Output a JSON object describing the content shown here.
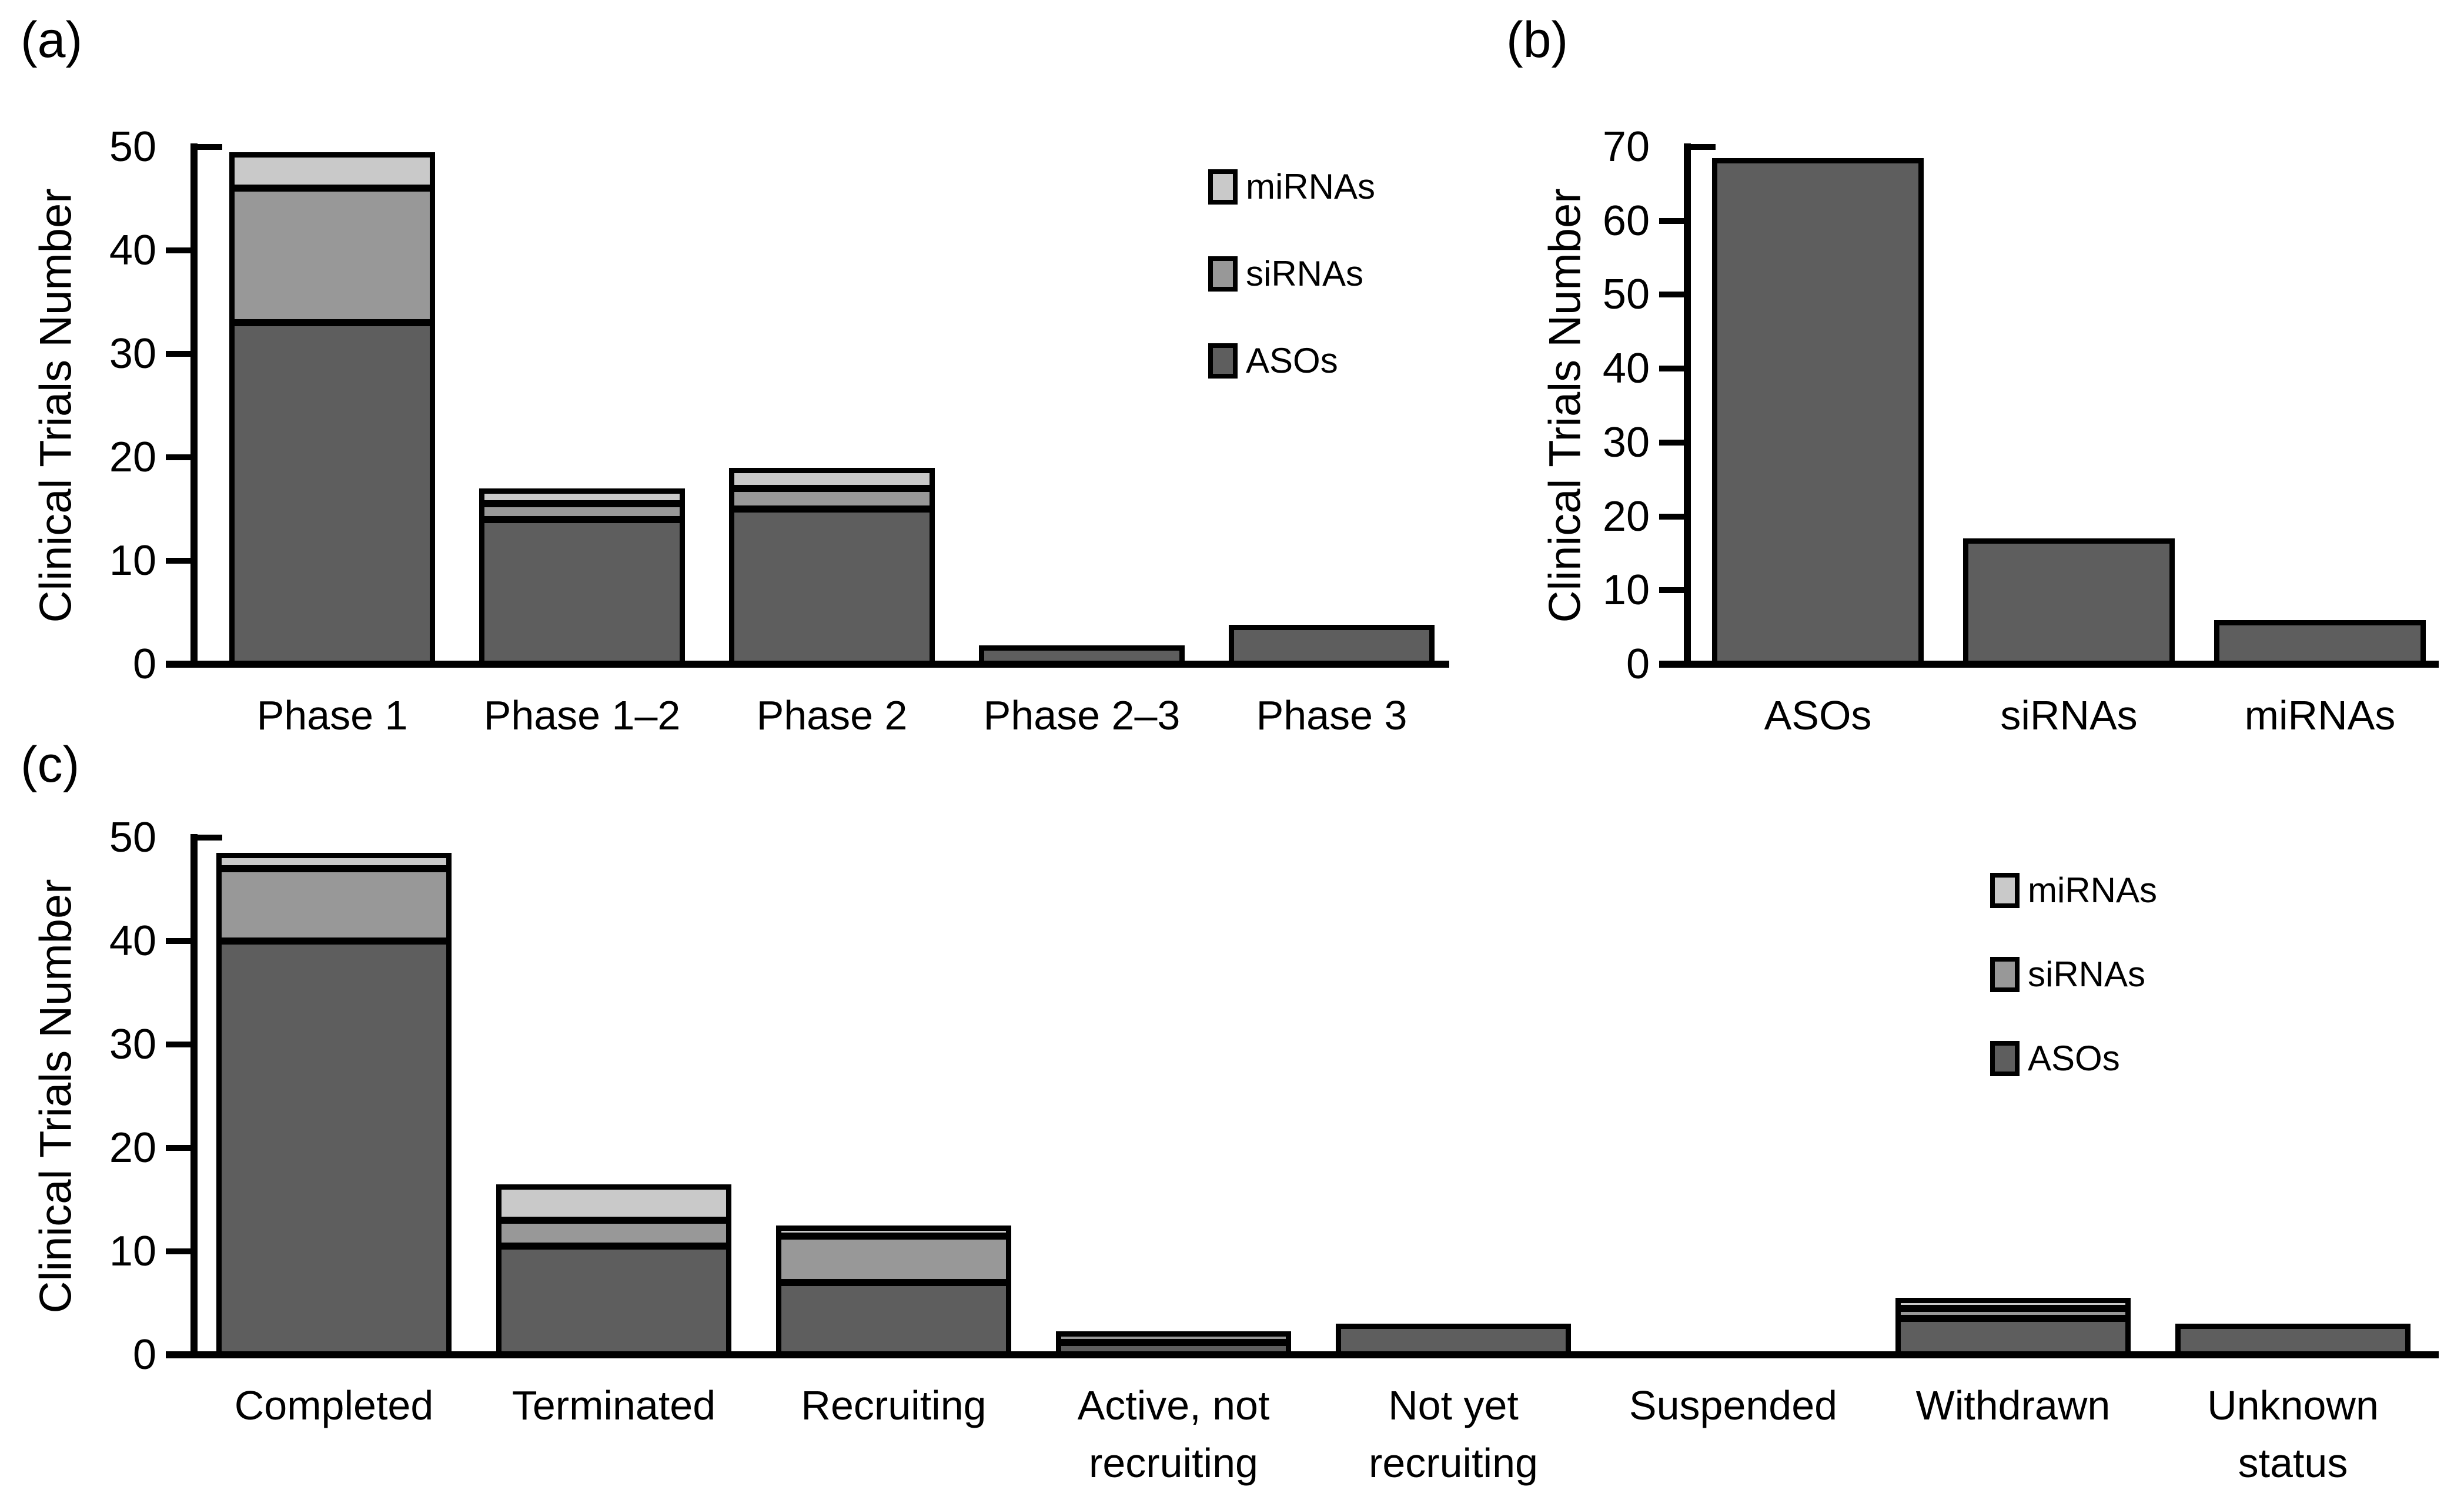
{
  "figure": {
    "background": "#ffffff",
    "text_color": "#000000",
    "colors": {
      "ASOs": "#5e5e5e",
      "siRNAs": "#989898",
      "miRNAs": "#c9c9c9",
      "axis": "#000000"
    },
    "ylabel": "Clinical Trials Number"
  },
  "chart_data": [
    {
      "id": "a",
      "panel_label": "(a)",
      "type": "bar",
      "stacked": true,
      "ylabel": "Clinical Trials Number",
      "ylim": [
        0,
        50
      ],
      "yticks": [
        0,
        10,
        20,
        30,
        40,
        50
      ],
      "grid": false,
      "legend": [
        "miRNAs",
        "siRNAs",
        "ASOs"
      ],
      "legend_position": "upper-right-inside",
      "categories": [
        "Phase 1",
        "Phase 1–2",
        "Phase 2",
        "Phase 2–3",
        "Phase 3"
      ],
      "categories_display": [
        [
          "Phase 1"
        ],
        [
          "Phase 1–2"
        ],
        [
          "Phase 2"
        ],
        [
          "Phase 2–3"
        ],
        [
          "Phase 3"
        ]
      ],
      "series": [
        {
          "name": "ASOs",
          "values": [
            33,
            14,
            15,
            1.8,
            3.8
          ]
        },
        {
          "name": "siRNAs",
          "values": [
            13,
            1.5,
            2,
            0,
            0
          ]
        },
        {
          "name": "miRNAs",
          "values": [
            3.5,
            1.5,
            2,
            0,
            0
          ]
        }
      ]
    },
    {
      "id": "b",
      "panel_label": "(b)",
      "type": "bar",
      "stacked": false,
      "ylabel": "Clinical Trials Number",
      "ylim": [
        0,
        70
      ],
      "yticks": [
        0,
        10,
        20,
        30,
        40,
        50,
        60,
        70
      ],
      "grid": false,
      "legend": null,
      "categories": [
        "ASOs",
        "siRNAs",
        "miRNAs"
      ],
      "categories_display": [
        [
          "ASOs"
        ],
        [
          "siRNAs"
        ],
        [
          "miRNAs"
        ]
      ],
      "series": [
        {
          "name": "ASOs",
          "values": [
            68.5,
            17,
            6
          ]
        }
      ],
      "bar_color_by_name": false,
      "single_color": "#5e5e5e"
    },
    {
      "id": "c",
      "panel_label": "(c)",
      "type": "bar",
      "stacked": true,
      "ylabel": "Clinical Trials Number",
      "ylim": [
        0,
        50
      ],
      "yticks": [
        0,
        10,
        20,
        30,
        40,
        50
      ],
      "grid": false,
      "legend": [
        "miRNAs",
        "siRNAs",
        "ASOs"
      ],
      "legend_position": "upper-right-inside",
      "categories": [
        "Completed",
        "Terminated",
        "Recruiting",
        "Active, not recruiting",
        "Not yet recruiting",
        "Suspended",
        "Withdrawn",
        "Unknown status"
      ],
      "categories_display": [
        [
          "Completed"
        ],
        [
          "Terminated"
        ],
        [
          "Recruiting"
        ],
        [
          "Active, not",
          "recruiting"
        ],
        [
          "Not yet",
          "recruiting"
        ],
        [
          "Suspended"
        ],
        [
          "Withdrawn"
        ],
        [
          "Unknown",
          "status"
        ]
      ],
      "series": [
        {
          "name": "ASOs",
          "values": [
            40,
            10.5,
            7,
            1.2,
            3,
            0,
            3.5,
            3
          ]
        },
        {
          "name": "siRNAs",
          "values": [
            7,
            2.5,
            4.5,
            1.1,
            0,
            0,
            1,
            0
          ]
        },
        {
          "name": "miRNAs",
          "values": [
            1.5,
            3.5,
            1,
            0,
            0,
            0,
            1,
            0
          ]
        }
      ]
    }
  ]
}
